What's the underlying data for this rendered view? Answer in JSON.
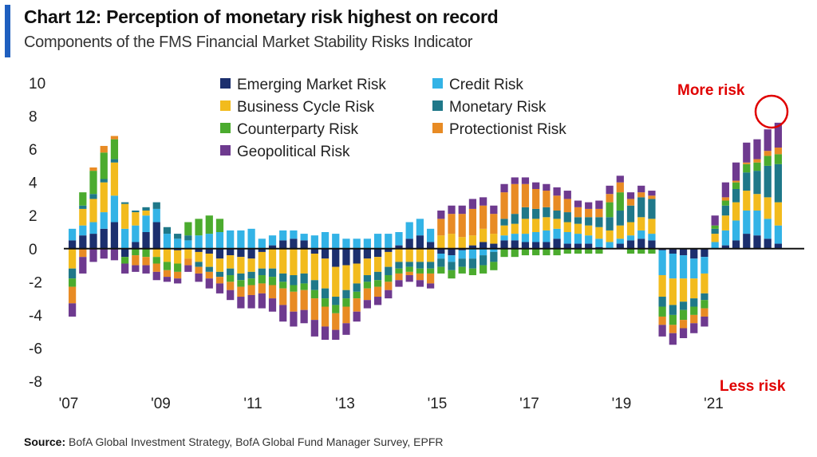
{
  "header": {
    "title": "Chart 12: Perception of monetary risk highest on record",
    "subtitle": "Components of the FMS Financial Market Stability Risks Indicator"
  },
  "source": {
    "label": "Source:",
    "text": "BofA Global Investment Strategy, BofA Global Fund Manager Survey, EPFR"
  },
  "annotations": {
    "more_risk": "More risk",
    "less_risk": "Less risk"
  },
  "colors": {
    "emerging_market": "#1c2f6e",
    "credit": "#33b3e6",
    "business_cycle": "#f2bb1d",
    "monetary": "#1f7889",
    "counterparty": "#4bab2e",
    "protectionist": "#e88b24",
    "geopolitical": "#6e3a8f",
    "annotation": "#e00000"
  },
  "chart_data": {
    "type": "bar",
    "stacked": true,
    "ylim": [
      -8,
      10
    ],
    "yticks": [
      "10",
      "8",
      "6",
      "4",
      "2",
      "0",
      "-2",
      "-4",
      "-6",
      "-8"
    ],
    "xticks": [
      "'07",
      "'09",
      "'11",
      "'13",
      "'15",
      "'17",
      "'19",
      "'21"
    ],
    "legend": {
      "placement": "top-center"
    },
    "series": [
      {
        "name": "Emerging Market Risk",
        "color": "#1c2f6e",
        "values": [
          0.5,
          0.8,
          0.9,
          1.2,
          1.6,
          -0.5,
          0.4,
          1.0,
          1.6,
          0.0,
          -0.1,
          0.0,
          -0.2,
          -0.3,
          -0.6,
          -0.4,
          -0.5,
          -0.6,
          -0.2,
          0.2,
          0.5,
          0.6,
          0.5,
          -0.3,
          -0.6,
          -1.1,
          -1.0,
          -0.9,
          -0.6,
          -0.5,
          -0.2,
          0.2,
          0.6,
          0.8,
          0.4,
          -0.3,
          -0.4,
          -0.1,
          0.2,
          0.4,
          0.3,
          0.5,
          0.5,
          0.4,
          0.4,
          0.4,
          0.6,
          0.3,
          0.3,
          0.3,
          0.1,
          0.0,
          0.3,
          0.5,
          0.6,
          0.5,
          -0.1,
          -0.3,
          -0.4,
          -0.6,
          -0.5,
          0.0,
          0.2,
          0.5,
          0.9,
          0.8,
          0.6,
          0.3
        ]
      },
      {
        "name": "Credit Risk",
        "color": "#33b3e6",
        "values": [
          0.7,
          0.6,
          0.7,
          1.0,
          1.6,
          1.2,
          1.0,
          1.0,
          0.8,
          0.9,
          0.6,
          0.5,
          0.8,
          0.9,
          1.0,
          1.1,
          1.1,
          1.2,
          0.6,
          0.6,
          0.6,
          0.5,
          0.4,
          0.8,
          1.0,
          0.9,
          0.6,
          0.6,
          0.6,
          0.9,
          0.9,
          0.8,
          1.0,
          1.0,
          0.8,
          -0.3,
          -0.4,
          -0.5,
          -0.6,
          -0.4,
          -0.2,
          0.3,
          0.4,
          0.5,
          0.6,
          0.7,
          0.6,
          0.7,
          0.6,
          0.5,
          0.5,
          0.4,
          0.3,
          0.3,
          0.5,
          0.4,
          -1.5,
          -1.5,
          -1.4,
          -1.2,
          -1.0,
          0.4,
          0.9,
          1.2,
          1.4,
          1.5,
          1.2,
          1.1
        ]
      },
      {
        "name": "Business Cycle Risk",
        "color": "#f2bb1d",
        "values": [
          -1.2,
          1.0,
          1.4,
          1.8,
          2.0,
          1.5,
          0.8,
          0.3,
          -0.5,
          -0.8,
          -0.8,
          -0.6,
          -0.6,
          -0.8,
          -0.8,
          -0.8,
          -1.0,
          -0.8,
          -1.0,
          -1.2,
          -1.5,
          -1.6,
          -1.5,
          -1.6,
          -1.8,
          -1.8,
          -1.5,
          -1.2,
          -1.0,
          -0.9,
          -0.9,
          -0.8,
          -0.8,
          -0.8,
          -0.8,
          0.8,
          0.9,
          0.7,
          0.6,
          0.8,
          0.6,
          0.6,
          0.6,
          0.9,
          0.8,
          0.8,
          0.6,
          0.6,
          0.6,
          0.6,
          0.7,
          0.7,
          0.8,
          0.8,
          0.8,
          0.9,
          -1.3,
          -1.6,
          -1.4,
          -1.2,
          -1.2,
          0.5,
          0.9,
          1.1,
          1.2,
          1.0,
          1.3,
          1.4
        ]
      },
      {
        "name": "Monetary Risk",
        "color": "#1f7889",
        "values": [
          -0.6,
          0.2,
          0.3,
          0.2,
          0.2,
          0.1,
          0.1,
          0.2,
          0.4,
          0.4,
          0.3,
          0.3,
          -0.3,
          -0.3,
          -0.3,
          -0.4,
          -0.4,
          -0.4,
          -0.4,
          -0.5,
          -0.5,
          -0.6,
          -0.6,
          -0.6,
          -0.6,
          -0.5,
          -0.5,
          -0.5,
          -0.4,
          -0.5,
          -0.5,
          -0.4,
          -0.3,
          -0.4,
          -0.4,
          -0.5,
          -0.5,
          -0.5,
          -0.6,
          -0.6,
          -0.6,
          0.4,
          0.6,
          0.7,
          0.6,
          0.6,
          0.5,
          0.6,
          0.4,
          0.5,
          0.6,
          0.8,
          0.9,
          1.0,
          1.2,
          1.2,
          -0.6,
          -0.6,
          -0.5,
          -0.5,
          -0.4,
          0.3,
          0.6,
          0.8,
          1.1,
          1.4,
          1.9,
          2.3
        ]
      },
      {
        "name": "Counterparty Risk",
        "color": "#4bab2e",
        "values": [
          -0.5,
          0.8,
          1.4,
          1.6,
          1.2,
          -0.4,
          -0.4,
          -0.5,
          -0.4,
          -0.5,
          -0.5,
          0.8,
          1.0,
          1.1,
          0.8,
          -0.4,
          -0.4,
          -0.4,
          -0.5,
          -0.5,
          -0.4,
          -0.4,
          -0.4,
          -0.5,
          -0.5,
          -0.5,
          -0.5,
          -0.4,
          -0.4,
          -0.4,
          -0.4,
          -0.3,
          -0.3,
          -0.3,
          -0.3,
          -0.4,
          -0.5,
          -0.4,
          -0.4,
          -0.5,
          -0.5,
          -0.5,
          -0.5,
          -0.4,
          -0.4,
          -0.4,
          -0.4,
          -0.3,
          -0.3,
          -0.3,
          -0.3,
          0.9,
          1.1,
          -0.3,
          -0.3,
          -0.3,
          -0.6,
          -0.6,
          -0.6,
          -0.5,
          -0.5,
          0.2,
          0.3,
          0.4,
          0.5,
          0.5,
          0.6,
          0.6
        ]
      },
      {
        "name": "Protectionist Risk",
        "color": "#e88b24",
        "values": [
          -1.0,
          -0.5,
          0.2,
          0.4,
          0.2,
          0.0,
          -0.6,
          -0.5,
          -0.5,
          -0.4,
          -0.4,
          -0.4,
          -0.4,
          -0.4,
          -0.4,
          -0.5,
          -0.6,
          -0.6,
          -0.6,
          -0.8,
          -1.0,
          -1.2,
          -1.2,
          -1.3,
          -1.2,
          -1.0,
          -1.0,
          -0.8,
          -0.7,
          -0.6,
          -0.5,
          -0.4,
          -0.2,
          -0.4,
          -0.6,
          1.0,
          1.2,
          1.4,
          1.6,
          1.4,
          1.2,
          1.6,
          1.8,
          1.4,
          1.2,
          1.0,
          0.9,
          0.8,
          0.6,
          0.5,
          0.5,
          0.5,
          0.6,
          0.4,
          0.3,
          0.2,
          -0.5,
          -0.5,
          -0.5,
          -0.5,
          -0.5,
          0.0,
          0.2,
          0.1,
          0.1,
          0.2,
          0.3,
          0.4
        ]
      },
      {
        "name": "Geopolitical Risk",
        "color": "#6e3a8f",
        "values": [
          -0.8,
          -1.0,
          -0.8,
          -0.6,
          -0.7,
          -0.6,
          -0.4,
          -0.5,
          -0.5,
          -0.3,
          -0.3,
          -0.4,
          -0.5,
          -0.6,
          -0.6,
          -0.6,
          -0.7,
          -0.8,
          -0.9,
          -0.8,
          -1.0,
          -0.9,
          -0.8,
          -1.0,
          -0.8,
          -0.6,
          -0.7,
          -0.6,
          -0.5,
          -0.5,
          -0.5,
          -0.4,
          -0.4,
          -0.4,
          -0.3,
          0.5,
          0.5,
          0.5,
          0.6,
          0.5,
          0.5,
          0.5,
          0.4,
          0.4,
          0.4,
          0.4,
          0.5,
          0.5,
          0.4,
          0.4,
          0.5,
          0.5,
          0.4,
          0.4,
          0.4,
          0.3,
          -0.7,
          -0.7,
          -0.6,
          -0.6,
          -0.6,
          0.6,
          0.9,
          1.1,
          1.2,
          1.2,
          1.3,
          1.5
        ]
      }
    ]
  }
}
